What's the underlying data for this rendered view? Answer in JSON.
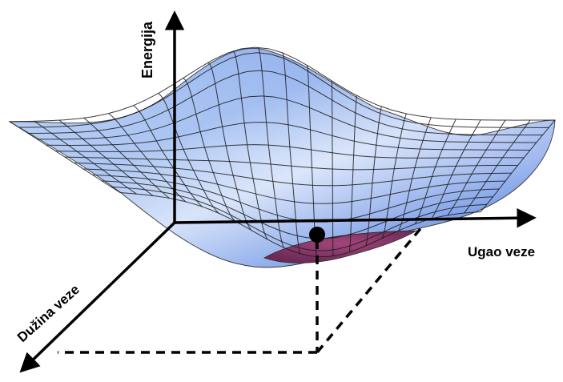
{
  "diagram": {
    "axes": {
      "energy_label": "Energija",
      "angle_label": "Ugao veze",
      "length_label": "Dužina veze"
    },
    "colors": {
      "surface_light": "#e6edfb",
      "surface_mid": "#a9c3f2",
      "surface_dark": "#5b84e0",
      "surface_edge": "#8fb0ec",
      "minimum_basin": "#8e3a6b",
      "mesh_lines": "#1a1a1a",
      "axis_color": "#000000"
    },
    "markers": {
      "minimum_point": "energy-minimum"
    }
  }
}
